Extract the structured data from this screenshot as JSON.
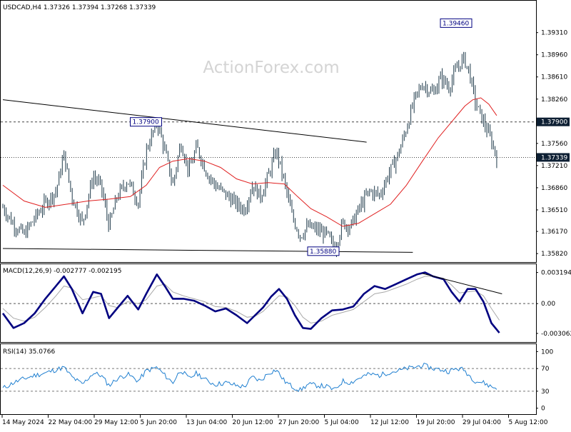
{
  "chart_data": [
    {
      "type": "candlestick",
      "title": "USDCAD,H4  1.37326 1.37394 1.37268 1.37339",
      "watermark": "ActionForex.com",
      "y_axis_ticks": [
        "1.39310",
        "1.38960",
        "1.38610",
        "1.38260",
        "1.37560",
        "1.37210",
        "1.36860",
        "1.36510",
        "1.36170",
        "1.35820"
      ],
      "ylim": [
        1.3572,
        1.3978
      ],
      "price_tags": [
        {
          "label": "1.37900",
          "value": 1.379,
          "style": "dark"
        },
        {
          "label": "1.37339",
          "value": 1.37339,
          "style": "dark"
        }
      ],
      "annotations": [
        {
          "label": "1.39460",
          "value": 1.3946,
          "t": 0.875
        },
        {
          "label": "1.37900",
          "value": 1.379,
          "t": 0.291
        },
        {
          "label": "1.35880",
          "value": 1.3588,
          "t": 0.625
        }
      ],
      "horizontal_lines": [
        {
          "value": 1.379,
          "style": "dashed"
        },
        {
          "value": 1.37339,
          "style": "dotted"
        }
      ],
      "trendlines": [
        {
          "from": {
            "t": 0.0,
            "v": 1.3825
          },
          "to": {
            "t": 0.685,
            "v": 1.3758
          }
        },
        {
          "from": {
            "t": 0.0,
            "v": 1.359
          },
          "to": {
            "t": 0.772,
            "v": 1.3584
          }
        }
      ],
      "ma_color": "#e02020",
      "candle_color": "#1f3a4a",
      "price_path": [
        [
          0.0,
          1.3655
        ],
        [
          0.02,
          1.3628
        ],
        [
          0.04,
          1.3612
        ],
        [
          0.06,
          1.3638
        ],
        [
          0.08,
          1.3662
        ],
        [
          0.1,
          1.368
        ],
        [
          0.115,
          1.3738
        ],
        [
          0.13,
          1.3672
        ],
        [
          0.15,
          1.363
        ],
        [
          0.17,
          1.3705
        ],
        [
          0.185,
          1.3688
        ],
        [
          0.2,
          1.3625
        ],
        [
          0.215,
          1.3672
        ],
        [
          0.235,
          1.3698
        ],
        [
          0.255,
          1.3663
        ],
        [
          0.27,
          1.3745
        ],
        [
          0.29,
          1.379
        ],
        [
          0.305,
          1.3745
        ],
        [
          0.32,
          1.369
        ],
        [
          0.335,
          1.3758
        ],
        [
          0.35,
          1.3712
        ],
        [
          0.365,
          1.375
        ],
        [
          0.385,
          1.3708
        ],
        [
          0.4,
          1.369
        ],
        [
          0.42,
          1.3675
        ],
        [
          0.44,
          1.366
        ],
        [
          0.455,
          1.3652
        ],
        [
          0.47,
          1.369
        ],
        [
          0.485,
          1.3672
        ],
        [
          0.5,
          1.3705
        ],
        [
          0.515,
          1.3745
        ],
        [
          0.53,
          1.3695
        ],
        [
          0.545,
          1.364
        ],
        [
          0.56,
          1.361
        ],
        [
          0.575,
          1.3625
        ],
        [
          0.595,
          1.3618
        ],
        [
          0.61,
          1.3612
        ],
        [
          0.625,
          1.359
        ],
        [
          0.64,
          1.363
        ],
        [
          0.655,
          1.3625
        ],
        [
          0.675,
          1.366
        ],
        [
          0.69,
          1.368
        ],
        [
          0.71,
          1.3675
        ],
        [
          0.725,
          1.3705
        ],
        [
          0.745,
          1.374
        ],
        [
          0.76,
          1.378
        ],
        [
          0.775,
          1.3825
        ],
        [
          0.79,
          1.385
        ],
        [
          0.81,
          1.3835
        ],
        [
          0.825,
          1.386
        ],
        [
          0.84,
          1.3845
        ],
        [
          0.855,
          1.3875
        ],
        [
          0.868,
          1.389
        ],
        [
          0.878,
          1.387
        ],
        [
          0.89,
          1.382
        ],
        [
          0.905,
          1.379
        ],
        [
          0.92,
          1.376
        ],
        [
          0.93,
          1.3734
        ]
      ],
      "ma_path": [
        [
          0.0,
          1.369
        ],
        [
          0.04,
          1.3665
        ],
        [
          0.08,
          1.3655
        ],
        [
          0.12,
          1.366
        ],
        [
          0.16,
          1.3665
        ],
        [
          0.2,
          1.3668
        ],
        [
          0.24,
          1.3672
        ],
        [
          0.27,
          1.369
        ],
        [
          0.295,
          1.3718
        ],
        [
          0.32,
          1.3728
        ],
        [
          0.35,
          1.3732
        ],
        [
          0.38,
          1.3728
        ],
        [
          0.41,
          1.3718
        ],
        [
          0.44,
          1.37
        ],
        [
          0.47,
          1.3692
        ],
        [
          0.5,
          1.3694
        ],
        [
          0.53,
          1.3692
        ],
        [
          0.555,
          1.3672
        ],
        [
          0.58,
          1.3653
        ],
        [
          0.61,
          1.364
        ],
        [
          0.64,
          1.3625
        ],
        [
          0.67,
          1.363
        ],
        [
          0.7,
          1.3645
        ],
        [
          0.73,
          1.366
        ],
        [
          0.76,
          1.369
        ],
        [
          0.79,
          1.3728
        ],
        [
          0.82,
          1.3765
        ],
        [
          0.845,
          1.379
        ],
        [
          0.87,
          1.3815
        ],
        [
          0.885,
          1.3825
        ],
        [
          0.9,
          1.3828
        ],
        [
          0.915,
          1.3818
        ],
        [
          0.93,
          1.38
        ]
      ]
    },
    {
      "type": "line",
      "title": "MACD(12,26,9) -0.002777 -0.002195",
      "y_axis_ticks": [
        "0.003194",
        "0.00",
        "-0.003062"
      ],
      "ylim": [
        -0.0038,
        0.0039
      ],
      "zero_line": true,
      "trendlines": [
        {
          "from": {
            "t": 0.79,
            "v": 0.0031
          },
          "to": {
            "t": 0.94,
            "v": 0.001
          }
        }
      ],
      "macd_color": "#000080",
      "signal_color": "#a8a8a8",
      "macd_path": [
        [
          0.0,
          -0.001
        ],
        [
          0.02,
          -0.0025
        ],
        [
          0.04,
          -0.002
        ],
        [
          0.06,
          -0.001
        ],
        [
          0.08,
          0.0005
        ],
        [
          0.1,
          0.0018
        ],
        [
          0.115,
          0.0028
        ],
        [
          0.13,
          0.0015
        ],
        [
          0.15,
          -0.001
        ],
        [
          0.17,
          0.0012
        ],
        [
          0.185,
          0.001
        ],
        [
          0.2,
          -0.0015
        ],
        [
          0.215,
          -0.0005
        ],
        [
          0.235,
          0.0008
        ],
        [
          0.255,
          -0.0006
        ],
        [
          0.27,
          0.001
        ],
        [
          0.29,
          0.003
        ],
        [
          0.305,
          0.0018
        ],
        [
          0.32,
          0.0005
        ],
        [
          0.34,
          0.0005
        ],
        [
          0.36,
          0.0003
        ],
        [
          0.38,
          -0.0002
        ],
        [
          0.4,
          -0.0008
        ],
        [
          0.42,
          -0.0005
        ],
        [
          0.44,
          -0.0012
        ],
        [
          0.46,
          -0.002
        ],
        [
          0.475,
          -0.0012
        ],
        [
          0.49,
          -0.0004
        ],
        [
          0.505,
          0.0007
        ],
        [
          0.52,
          0.0015
        ],
        [
          0.535,
          0.0005
        ],
        [
          0.55,
          -0.0012
        ],
        [
          0.565,
          -0.0025
        ],
        [
          0.58,
          -0.0026
        ],
        [
          0.6,
          -0.0015
        ],
        [
          0.62,
          -0.0007
        ],
        [
          0.64,
          -0.0006
        ],
        [
          0.66,
          -0.0003
        ],
        [
          0.68,
          0.001
        ],
        [
          0.7,
          0.0018
        ],
        [
          0.72,
          0.0015
        ],
        [
          0.74,
          0.002
        ],
        [
          0.76,
          0.0025
        ],
        [
          0.78,
          0.003
        ],
        [
          0.795,
          0.0032
        ],
        [
          0.81,
          0.0028
        ],
        [
          0.83,
          0.0025
        ],
        [
          0.845,
          0.0012
        ],
        [
          0.86,
          0.0002
        ],
        [
          0.875,
          0.0015
        ],
        [
          0.89,
          0.0015
        ],
        [
          0.905,
          0.0002
        ],
        [
          0.92,
          -0.002
        ],
        [
          0.935,
          -0.003
        ]
      ],
      "signal_path": [
        [
          0.0,
          -0.0005
        ],
        [
          0.02,
          -0.0015
        ],
        [
          0.04,
          -0.0018
        ],
        [
          0.06,
          -0.0014
        ],
        [
          0.08,
          -0.0004
        ],
        [
          0.1,
          0.0008
        ],
        [
          0.115,
          0.0018
        ],
        [
          0.13,
          0.0016
        ],
        [
          0.15,
          0.0004
        ],
        [
          0.17,
          0.0006
        ],
        [
          0.185,
          0.0008
        ],
        [
          0.2,
          -0.0002
        ],
        [
          0.215,
          -0.0004
        ],
        [
          0.235,
          0.0002
        ],
        [
          0.255,
          0.0
        ],
        [
          0.27,
          0.0004
        ],
        [
          0.29,
          0.0018
        ],
        [
          0.305,
          0.002
        ],
        [
          0.32,
          0.0012
        ],
        [
          0.34,
          0.0008
        ],
        [
          0.36,
          0.0005
        ],
        [
          0.38,
          0.0002
        ],
        [
          0.4,
          -0.0003
        ],
        [
          0.42,
          -0.0004
        ],
        [
          0.44,
          -0.0008
        ],
        [
          0.46,
          -0.0014
        ],
        [
          0.475,
          -0.0013
        ],
        [
          0.49,
          -0.0008
        ],
        [
          0.505,
          0.0
        ],
        [
          0.52,
          0.0008
        ],
        [
          0.535,
          0.0007
        ],
        [
          0.55,
          -0.0002
        ],
        [
          0.565,
          -0.0014
        ],
        [
          0.58,
          -0.002
        ],
        [
          0.6,
          -0.0018
        ],
        [
          0.62,
          -0.0012
        ],
        [
          0.64,
          -0.0009
        ],
        [
          0.66,
          -0.0006
        ],
        [
          0.68,
          0.0002
        ],
        [
          0.7,
          0.001
        ],
        [
          0.72,
          0.0012
        ],
        [
          0.74,
          0.0016
        ],
        [
          0.76,
          0.002
        ],
        [
          0.78,
          0.0025
        ],
        [
          0.795,
          0.0028
        ],
        [
          0.81,
          0.0028
        ],
        [
          0.83,
          0.0026
        ],
        [
          0.845,
          0.0019
        ],
        [
          0.86,
          0.0011
        ],
        [
          0.875,
          0.0012
        ],
        [
          0.89,
          0.0013
        ],
        [
          0.905,
          0.0008
        ],
        [
          0.92,
          -0.0005
        ],
        [
          0.935,
          -0.0017
        ]
      ]
    },
    {
      "type": "line",
      "title": "RSI(14) 35.0766",
      "y_axis_ticks": [
        "100",
        "70",
        "30",
        "0"
      ],
      "levels": [
        70,
        30
      ],
      "ylim": [
        -8,
        108
      ],
      "rsi_color": "#1f7fd0",
      "rsi_path": [
        [
          0.0,
          35
        ],
        [
          0.02,
          45
        ],
        [
          0.04,
          52
        ],
        [
          0.06,
          58
        ],
        [
          0.08,
          62
        ],
        [
          0.1,
          68
        ],
        [
          0.115,
          72
        ],
        [
          0.13,
          55
        ],
        [
          0.15,
          42
        ],
        [
          0.17,
          62
        ],
        [
          0.185,
          58
        ],
        [
          0.2,
          40
        ],
        [
          0.215,
          52
        ],
        [
          0.235,
          60
        ],
        [
          0.255,
          48
        ],
        [
          0.27,
          66
        ],
        [
          0.29,
          72
        ],
        [
          0.305,
          58
        ],
        [
          0.32,
          45
        ],
        [
          0.335,
          68
        ],
        [
          0.35,
          52
        ],
        [
          0.365,
          62
        ],
        [
          0.385,
          48
        ],
        [
          0.4,
          42
        ],
        [
          0.42,
          45
        ],
        [
          0.44,
          40
        ],
        [
          0.455,
          38
        ],
        [
          0.47,
          55
        ],
        [
          0.485,
          48
        ],
        [
          0.5,
          62
        ],
        [
          0.515,
          68
        ],
        [
          0.53,
          48
        ],
        [
          0.545,
          38
        ],
        [
          0.56,
          32
        ],
        [
          0.575,
          42
        ],
        [
          0.595,
          40
        ],
        [
          0.61,
          38
        ],
        [
          0.625,
          32
        ],
        [
          0.64,
          48
        ],
        [
          0.655,
          45
        ],
        [
          0.675,
          55
        ],
        [
          0.69,
          60
        ],
        [
          0.71,
          58
        ],
        [
          0.725,
          63
        ],
        [
          0.745,
          66
        ],
        [
          0.76,
          70
        ],
        [
          0.775,
          72
        ],
        [
          0.79,
          76
        ],
        [
          0.81,
          70
        ],
        [
          0.825,
          68
        ],
        [
          0.84,
          65
        ],
        [
          0.855,
          70
        ],
        [
          0.868,
          68
        ],
        [
          0.878,
          58
        ],
        [
          0.89,
          48
        ],
        [
          0.905,
          45
        ],
        [
          0.92,
          38
        ],
        [
          0.93,
          35
        ]
      ]
    }
  ],
  "x_axis_labels": [
    "14 May 2024",
    "22 May 04:00",
    "29 May 12:00",
    "5 Jun 20:00",
    "13 Jun 04:00",
    "20 Jun 12:00",
    "27 Jun 20:00",
    "5 Jul 04:00",
    "12 Jul 12:00",
    "19 Jul 20:00",
    "29 Jul 04:00",
    "5 Aug 12:00"
  ]
}
